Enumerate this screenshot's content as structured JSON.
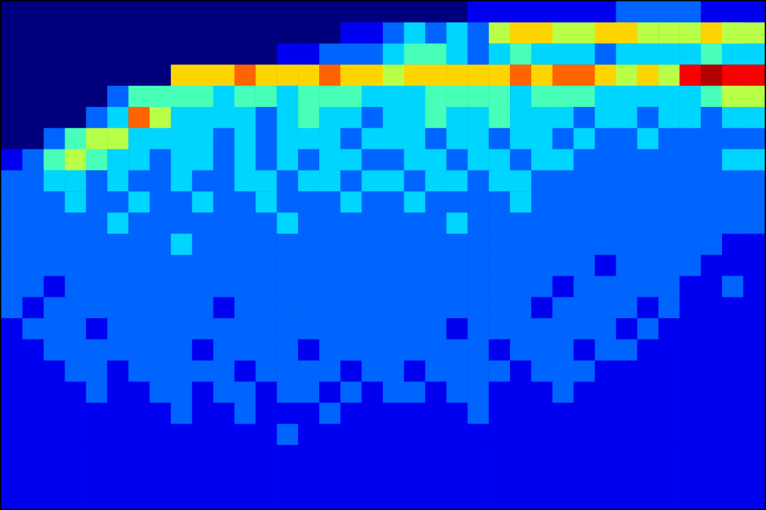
{
  "chart_data": {
    "type": "heatmap",
    "tick_labels": false,
    "cells": [
      [
        0,
        0,
        0,
        0,
        0,
        0,
        0,
        0,
        0,
        0,
        0,
        0,
        0,
        0,
        0,
        0,
        0,
        0,
        0,
        0,
        0,
        0,
        1,
        1,
        1,
        1,
        1,
        1,
        1,
        2,
        2,
        2,
        2,
        1,
        1,
        1
      ],
      [
        0,
        0,
        0,
        0,
        0,
        0,
        0,
        0,
        0,
        0,
        0,
        0,
        0,
        0,
        0,
        0,
        1,
        1,
        2,
        3,
        2,
        3,
        2,
        5,
        6,
        6,
        5,
        5,
        6,
        6,
        5,
        5,
        5,
        6,
        5,
        5
      ],
      [
        0,
        0,
        0,
        0,
        0,
        0,
        0,
        0,
        0,
        0,
        0,
        0,
        0,
        1,
        1,
        2,
        2,
        2,
        3,
        4,
        4,
        3,
        2,
        3,
        4,
        3,
        3,
        3,
        2,
        3,
        3,
        3,
        3,
        4,
        3,
        3
      ],
      [
        0,
        0,
        0,
        0,
        0,
        0,
        0,
        0,
        6,
        6,
        6,
        7,
        6,
        6,
        6,
        7,
        6,
        6,
        5,
        6,
        6,
        6,
        6,
        6,
        7,
        6,
        7,
        7,
        6,
        5,
        6,
        5,
        8,
        9,
        8,
        8
      ],
      [
        0,
        0,
        0,
        0,
        0,
        2,
        4,
        4,
        4,
        4,
        3,
        4,
        4,
        3,
        4,
        4,
        4,
        3,
        3,
        3,
        4,
        4,
        4,
        4,
        3,
        4,
        4,
        4,
        3,
        3,
        3,
        3,
        3,
        4,
        5,
        5
      ],
      [
        0,
        0,
        0,
        0,
        2,
        3,
        7,
        5,
        3,
        3,
        3,
        3,
        2,
        3,
        4,
        3,
        3,
        2,
        3,
        3,
        4,
        3,
        3,
        4,
        3,
        3,
        3,
        2,
        3,
        3,
        2,
        3,
        3,
        2,
        3,
        3
      ],
      [
        0,
        0,
        2,
        4,
        5,
        5,
        3,
        3,
        3,
        3,
        2,
        3,
        2,
        3,
        3,
        3,
        2,
        3,
        3,
        3,
        2,
        3,
        3,
        2,
        3,
        3,
        2,
        3,
        2,
        2,
        3,
        2,
        2,
        2,
        2,
        2
      ],
      [
        1,
        2,
        4,
        5,
        4,
        3,
        3,
        2,
        3,
        3,
        2,
        3,
        2,
        3,
        2,
        3,
        3,
        2,
        2,
        3,
        3,
        2,
        3,
        3,
        2,
        3,
        3,
        2,
        2,
        2,
        2,
        2,
        2,
        2,
        3,
        3
      ],
      [
        2,
        2,
        3,
        3,
        2,
        3,
        2,
        2,
        3,
        2,
        2,
        3,
        3,
        2,
        3,
        3,
        2,
        3,
        3,
        2,
        3,
        3,
        2,
        3,
        3,
        2,
        2,
        2,
        2,
        2,
        2,
        2,
        2,
        2,
        2,
        2
      ],
      [
        2,
        2,
        2,
        3,
        2,
        2,
        3,
        2,
        2,
        3,
        2,
        2,
        3,
        2,
        2,
        2,
        3,
        2,
        2,
        3,
        2,
        2,
        2,
        2,
        3,
        2,
        2,
        2,
        2,
        2,
        2,
        2,
        2,
        2,
        2,
        2
      ],
      [
        2,
        2,
        2,
        2,
        2,
        3,
        2,
        2,
        2,
        2,
        2,
        2,
        2,
        3,
        2,
        2,
        2,
        2,
        2,
        2,
        2,
        3,
        2,
        2,
        2,
        2,
        2,
        2,
        2,
        2,
        2,
        2,
        2,
        2,
        2,
        2
      ],
      [
        2,
        2,
        2,
        2,
        2,
        2,
        2,
        2,
        3,
        2,
        2,
        2,
        2,
        2,
        2,
        2,
        2,
        2,
        2,
        2,
        2,
        2,
        2,
        2,
        2,
        2,
        2,
        2,
        2,
        2,
        2,
        2,
        2,
        2,
        1,
        1
      ],
      [
        2,
        2,
        2,
        2,
        2,
        2,
        2,
        2,
        2,
        2,
        2,
        2,
        2,
        2,
        2,
        2,
        2,
        2,
        2,
        2,
        2,
        2,
        2,
        2,
        2,
        2,
        2,
        2,
        1,
        2,
        2,
        2,
        2,
        1,
        1,
        1
      ],
      [
        2,
        2,
        1,
        2,
        2,
        2,
        2,
        2,
        2,
        2,
        2,
        2,
        2,
        2,
        2,
        2,
        2,
        2,
        2,
        2,
        2,
        2,
        2,
        2,
        2,
        2,
        1,
        2,
        2,
        2,
        2,
        2,
        1,
        1,
        2,
        1
      ],
      [
        2,
        1,
        2,
        2,
        2,
        2,
        2,
        2,
        2,
        2,
        1,
        2,
        2,
        2,
        2,
        2,
        2,
        2,
        2,
        2,
        2,
        2,
        2,
        2,
        2,
        1,
        2,
        2,
        2,
        2,
        1,
        2,
        1,
        1,
        1,
        1
      ],
      [
        1,
        2,
        2,
        2,
        1,
        2,
        2,
        2,
        2,
        2,
        2,
        2,
        2,
        2,
        2,
        2,
        2,
        2,
        2,
        2,
        2,
        1,
        2,
        2,
        2,
        2,
        2,
        2,
        2,
        1,
        2,
        1,
        1,
        1,
        1,
        1
      ],
      [
        1,
        1,
        2,
        2,
        2,
        2,
        2,
        2,
        2,
        1,
        2,
        2,
        2,
        2,
        1,
        2,
        2,
        2,
        2,
        2,
        2,
        2,
        2,
        1,
        2,
        2,
        2,
        1,
        2,
        2,
        1,
        1,
        1,
        1,
        1,
        1
      ],
      [
        1,
        1,
        1,
        2,
        2,
        1,
        2,
        2,
        2,
        2,
        2,
        1,
        2,
        2,
        2,
        2,
        1,
        2,
        2,
        1,
        2,
        2,
        2,
        2,
        1,
        2,
        2,
        2,
        1,
        1,
        1,
        1,
        1,
        1,
        1,
        1
      ],
      [
        1,
        1,
        1,
        1,
        2,
        1,
        1,
        2,
        2,
        1,
        2,
        2,
        1,
        2,
        2,
        1,
        2,
        1,
        2,
        2,
        1,
        2,
        2,
        1,
        1,
        1,
        2,
        1,
        1,
        1,
        1,
        1,
        1,
        1,
        1,
        1
      ],
      [
        1,
        1,
        1,
        1,
        1,
        1,
        1,
        1,
        2,
        1,
        1,
        2,
        1,
        1,
        1,
        2,
        1,
        1,
        1,
        1,
        1,
        1,
        2,
        1,
        1,
        1,
        1,
        1,
        1,
        1,
        1,
        1,
        1,
        1,
        1,
        1
      ],
      [
        1,
        1,
        1,
        1,
        1,
        1,
        1,
        1,
        1,
        1,
        1,
        1,
        1,
        2,
        1,
        1,
        1,
        1,
        1,
        1,
        1,
        1,
        1,
        1,
        1,
        1,
        1,
        1,
        1,
        1,
        1,
        1,
        1,
        1,
        1,
        1
      ],
      [
        1,
        1,
        1,
        1,
        1,
        1,
        1,
        1,
        1,
        1,
        1,
        1,
        1,
        1,
        1,
        1,
        1,
        1,
        1,
        1,
        1,
        1,
        1,
        1,
        1,
        1,
        1,
        1,
        1,
        1,
        1,
        1,
        1,
        1,
        1,
        1
      ],
      [
        1,
        1,
        1,
        1,
        1,
        1,
        1,
        1,
        1,
        1,
        1,
        1,
        1,
        1,
        1,
        1,
        1,
        1,
        1,
        1,
        1,
        1,
        1,
        1,
        1,
        1,
        1,
        1,
        1,
        1,
        1,
        1,
        1,
        1,
        1,
        1
      ],
      [
        1,
        1,
        1,
        1,
        1,
        1,
        1,
        1,
        1,
        1,
        1,
        1,
        1,
        1,
        1,
        1,
        1,
        1,
        1,
        1,
        1,
        1,
        1,
        1,
        1,
        1,
        1,
        1,
        1,
        1,
        1,
        1,
        1,
        1,
        1,
        1
      ]
    ]
  }
}
